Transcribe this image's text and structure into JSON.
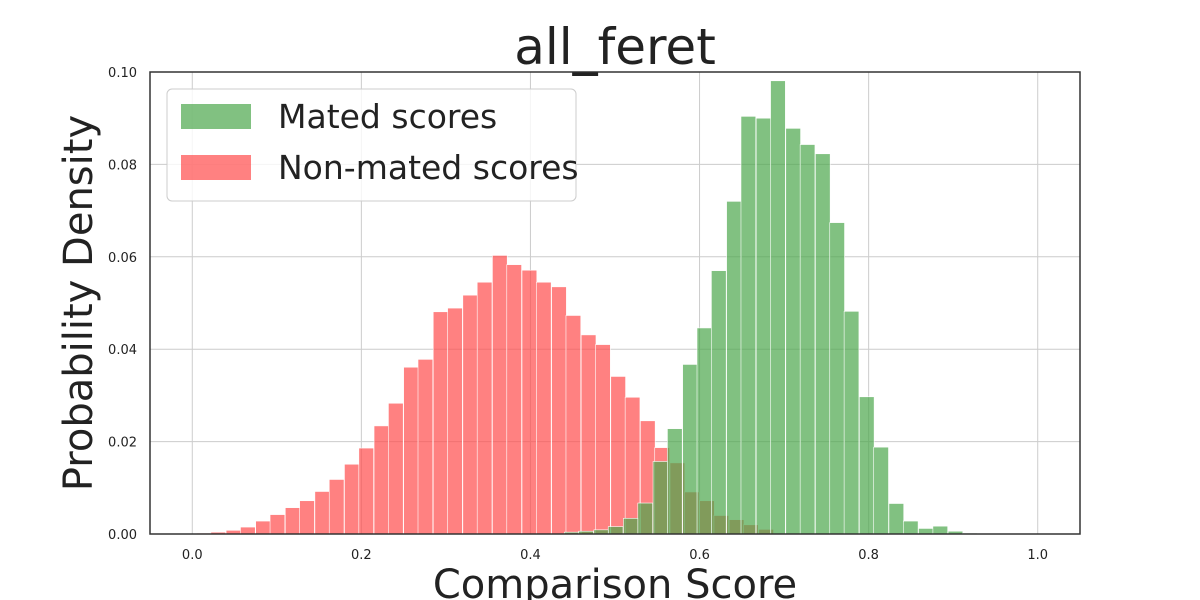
{
  "chart_data": {
    "type": "histogram",
    "title": "all_feret",
    "xlabel": "Comparison Score",
    "ylabel": "Probability Density",
    "xlim": [
      -0.05,
      1.05
    ],
    "ylim": [
      0,
      0.1
    ],
    "x_ticks": [
      0.0,
      0.2,
      0.4,
      0.6,
      0.8,
      1.0
    ],
    "x_tick_labels": [
      "0.0",
      "0.2",
      "0.4",
      "0.6",
      "0.8",
      "1.0"
    ],
    "y_ticks": [
      0.0,
      0.02,
      0.04,
      0.06,
      0.08,
      0.1
    ],
    "y_tick_labels": [
      "0.00",
      "0.02",
      "0.04",
      "0.06",
      "0.08",
      "0.10"
    ],
    "grid": true,
    "legend_position": "top-left",
    "series": [
      {
        "name": "Mated scores",
        "color": "#4ca64c",
        "bin_starts": [
          0.44,
          0.457,
          0.475,
          0.492,
          0.51,
          0.527,
          0.545,
          0.562,
          0.58,
          0.597,
          0.614,
          0.632,
          0.649,
          0.667,
          0.684,
          0.702,
          0.719,
          0.737,
          0.754,
          0.771,
          0.789,
          0.806,
          0.824,
          0.841,
          0.859,
          0.876,
          0.894,
          0.911
        ],
        "bin_width": 0.0175,
        "values": [
          0.0004,
          0.0006,
          0.0009,
          0.0016,
          0.0034,
          0.0067,
          0.0157,
          0.0228,
          0.0367,
          0.0446,
          0.057,
          0.072,
          0.0904,
          0.09,
          0.0981,
          0.0878,
          0.0843,
          0.0823,
          0.0674,
          0.0482,
          0.0297,
          0.0188,
          0.0066,
          0.0028,
          0.0012,
          0.0017,
          0.0006,
          0.0002
        ]
      },
      {
        "name": "Non-mated scores",
        "color": "#ff4c4c",
        "bin_starts": [
          0.005,
          0.022,
          0.04,
          0.057,
          0.075,
          0.092,
          0.11,
          0.127,
          0.145,
          0.162,
          0.18,
          0.197,
          0.215,
          0.232,
          0.25,
          0.267,
          0.285,
          0.302,
          0.32,
          0.337,
          0.355,
          0.372,
          0.39,
          0.407,
          0.425,
          0.442,
          0.46,
          0.477,
          0.495,
          0.512,
          0.53,
          0.547,
          0.565,
          0.582,
          0.6,
          0.617,
          0.635,
          0.652,
          0.67
        ],
        "bin_width": 0.0175,
        "values": [
          0.0002,
          0.0004,
          0.0008,
          0.0015,
          0.0028,
          0.0042,
          0.0057,
          0.0072,
          0.0092,
          0.0118,
          0.0151,
          0.0186,
          0.0234,
          0.0283,
          0.0361,
          0.0378,
          0.0481,
          0.0489,
          0.0517,
          0.0545,
          0.0603,
          0.0583,
          0.0571,
          0.0545,
          0.0535,
          0.0473,
          0.0431,
          0.041,
          0.0341,
          0.0296,
          0.0245,
          0.0187,
          0.0154,
          0.0091,
          0.0072,
          0.004,
          0.0031,
          0.002,
          0.001
        ]
      }
    ]
  }
}
